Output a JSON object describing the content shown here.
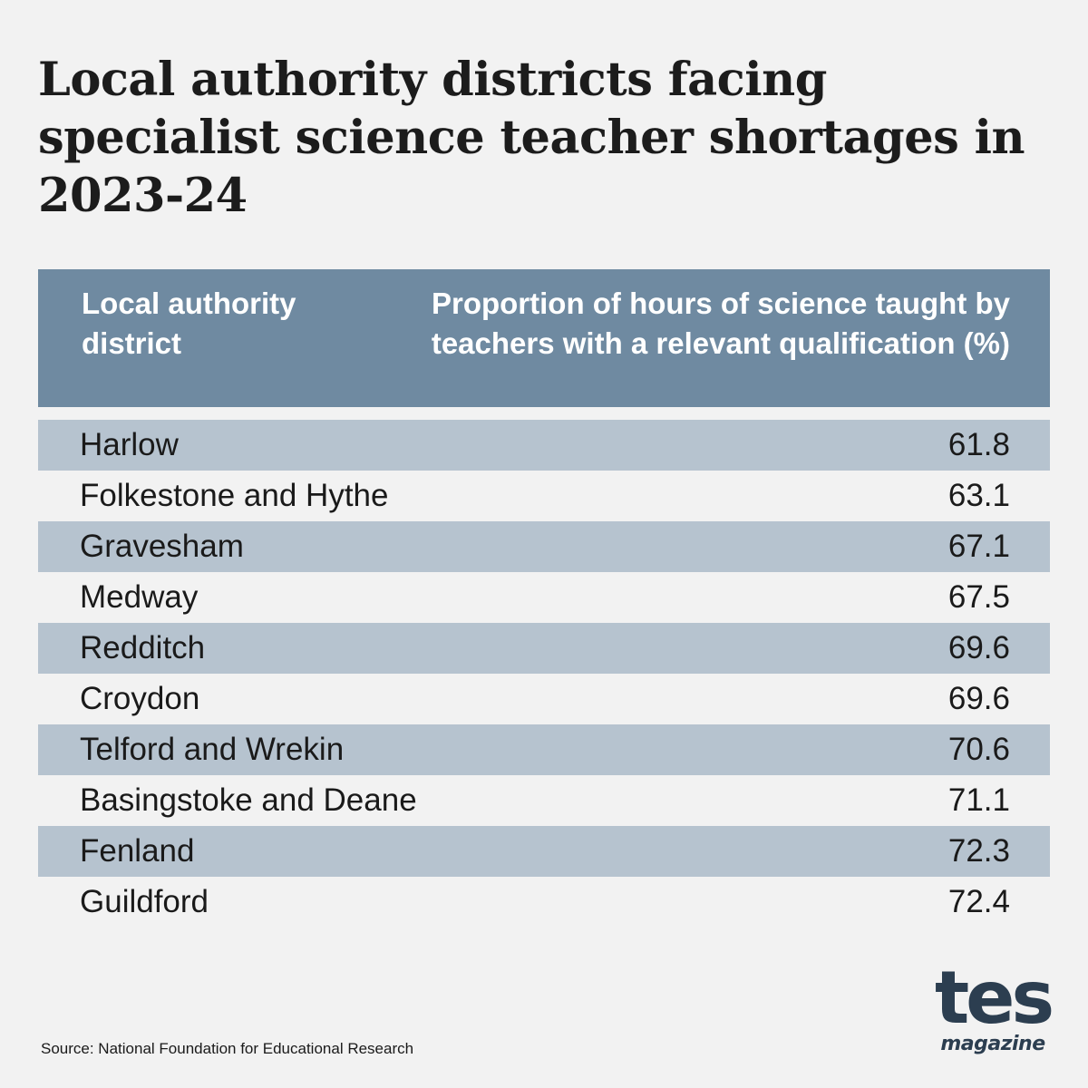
{
  "chart_data": {
    "type": "table",
    "title": "Local authority districts facing specialist science teacher shortages in 2023-24",
    "columns": [
      "Local authority district",
      "Proportion of hours of science taught by teachers with a relevant qualification (%)"
    ],
    "rows": [
      {
        "district": "Harlow",
        "value": "61.8"
      },
      {
        "district": "Folkestone and Hythe",
        "value": "63.1"
      },
      {
        "district": "Gravesham",
        "value": "67.1"
      },
      {
        "district": "Medway",
        "value": "67.5"
      },
      {
        "district": "Redditch",
        "value": "69.6"
      },
      {
        "district": "Croydon",
        "value": "69.6"
      },
      {
        "district": "Telford and Wrekin",
        "value": "70.6"
      },
      {
        "district": "Basingstoke and Deane",
        "value": "71.1"
      },
      {
        "district": "Fenland",
        "value": "72.3"
      },
      {
        "district": "Guildford",
        "value": "72.4"
      }
    ],
    "source": "Source: National Foundation for Educational Research"
  },
  "logo": {
    "main": "tes",
    "sub": "magazine"
  },
  "colors": {
    "header_bg": "#6f8aa1",
    "row_shade": "#b6c3cf",
    "background": "#f2f2f2",
    "logo": "#2c3e50"
  }
}
